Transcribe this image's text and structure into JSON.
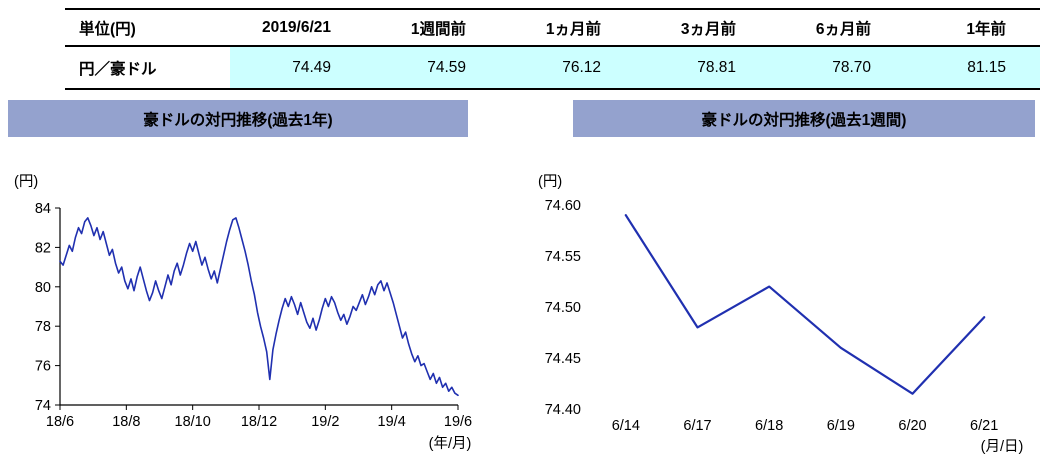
{
  "table": {
    "headers": [
      "単位(円)",
      "2019/6/21",
      "1週間前",
      "1ヵ月前",
      "3ヵ月前",
      "6ヵ月前",
      "1年前"
    ],
    "rows": [
      {
        "label": "円／豪ドル",
        "values": [
          "74.49",
          "74.59",
          "76.12",
          "78.81",
          "78.70",
          "81.15"
        ]
      }
    ]
  },
  "colors": {
    "title_bar": "#94A2CE",
    "highlight": "#CCFFFF",
    "line": "#2030B0"
  },
  "chart_data": [
    {
      "type": "line",
      "title": "豪ドルの対円推移(過去1年)",
      "ylabel": "(円)",
      "xlabel": "(年/月)",
      "ylim": [
        74,
        84
      ],
      "yticks": [
        "74",
        "76",
        "78",
        "80",
        "82",
        "84"
      ],
      "xticks": [
        "18/6",
        "18/8",
        "18/10",
        "18/12",
        "19/2",
        "19/4",
        "19/6"
      ],
      "grid": false,
      "legend": false,
      "series": [
        {
          "name": "円／豪ドル",
          "values": [
            81.3,
            81.1,
            81.6,
            82.1,
            81.8,
            82.5,
            83.0,
            82.7,
            83.3,
            83.5,
            83.1,
            82.6,
            83.0,
            82.4,
            82.8,
            82.2,
            81.6,
            81.9,
            81.2,
            80.7,
            81.0,
            80.3,
            79.9,
            80.4,
            79.8,
            80.5,
            81.0,
            80.4,
            79.8,
            79.3,
            79.7,
            80.3,
            79.8,
            79.4,
            80.0,
            80.6,
            80.1,
            80.8,
            81.2,
            80.6,
            81.1,
            81.7,
            82.2,
            81.8,
            82.3,
            81.7,
            81.1,
            81.5,
            80.9,
            80.4,
            80.8,
            80.2,
            80.9,
            81.6,
            82.3,
            82.9,
            83.4,
            83.5,
            83.0,
            82.4,
            81.8,
            81.1,
            80.3,
            79.6,
            78.7,
            78.0,
            77.4,
            76.7,
            75.3,
            76.8,
            77.6,
            78.3,
            78.9,
            79.4,
            79.0,
            79.5,
            79.1,
            78.6,
            79.2,
            78.7,
            78.2,
            77.9,
            78.4,
            77.8,
            78.3,
            78.9,
            79.4,
            79.0,
            79.5,
            79.2,
            78.7,
            78.3,
            78.6,
            78.1,
            78.5,
            79.0,
            78.8,
            79.2,
            79.6,
            79.1,
            79.5,
            80.0,
            79.6,
            80.1,
            80.3,
            79.8,
            80.2,
            79.7,
            79.2,
            78.6,
            78.0,
            77.4,
            77.7,
            77.1,
            76.6,
            76.2,
            76.5,
            76.0,
            76.1,
            75.7,
            75.3,
            75.6,
            75.1,
            75.4,
            74.9,
            75.1,
            74.7,
            74.9,
            74.6,
            74.49
          ]
        }
      ]
    },
    {
      "type": "line",
      "title": "豪ドルの対円推移(過去1週間)",
      "ylabel": "(円)",
      "xlabel": "(月/日)",
      "ylim": [
        74.4,
        74.6
      ],
      "yticks": [
        "74.40",
        "74.45",
        "74.50",
        "74.55",
        "74.60"
      ],
      "categories": [
        "6/14",
        "6/17",
        "6/18",
        "6/19",
        "6/20",
        "6/21"
      ],
      "grid": false,
      "legend": false,
      "values": [
        74.59,
        74.48,
        74.52,
        74.46,
        74.415,
        74.49
      ]
    }
  ]
}
